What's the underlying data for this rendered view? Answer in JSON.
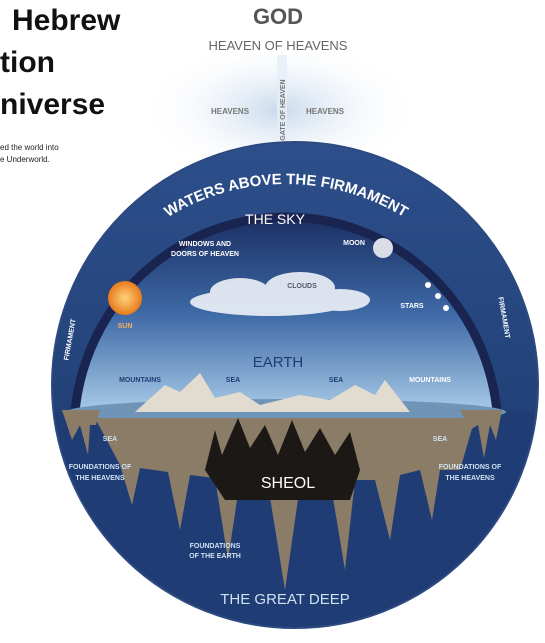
{
  "header": {
    "title_lines": [
      "Hebrew",
      "tion",
      "niverse"
    ],
    "intro_lines": [
      "ed the world into",
      "e Underworld."
    ]
  },
  "top": {
    "god": "GOD",
    "heaven_of_heavens": "HEAVEN OF HEAVENS",
    "heavens_left": "HEAVENS",
    "heavens_right": "HEAVENS",
    "gate": "GATE OF HEAVEN"
  },
  "sky": {
    "waters": "WATERS ABOVE THE FIRMAMENT",
    "title": "THE SKY",
    "windows": [
      "WINDOWS AND",
      "DOORS OF HEAVEN"
    ],
    "moon": "MOON",
    "clouds": "CLOUDS",
    "stars": "STARS",
    "sun": "SUN",
    "firmament_left": "FIRMAMENT",
    "firmament_right": "FIRMAMENT"
  },
  "earth": {
    "title": "EARTH",
    "mountains_left": "MOUNTAINS",
    "sea_left": "SEA",
    "sea_right": "SEA",
    "mountains_right": "MOUNTAINS",
    "sea_outer_left": "SEA",
    "sea_outer_right": "SEA"
  },
  "underworld": {
    "foundations_heavens_left": [
      "FOUNDATIONS OF",
      "THE HEAVENS"
    ],
    "foundations_heavens_right": [
      "FOUNDATIONS OF",
      "THE HEAVENS"
    ],
    "sheol": "SHEOL",
    "foundations_earth": [
      "FOUNDATIONS",
      "OF THE EARTH"
    ],
    "great_deep": "THE GREAT DEEP"
  }
}
